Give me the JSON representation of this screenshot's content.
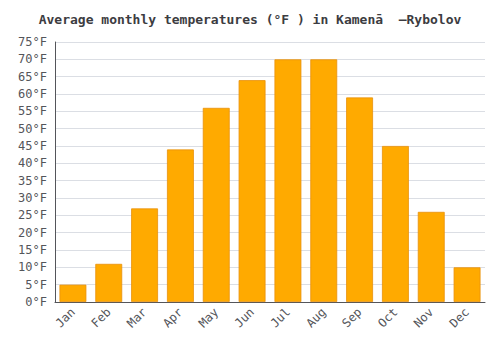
{
  "chart_data": {
    "type": "bar",
    "title": "Average monthly temperatures (°F ) in Kamenā  –Rybolov",
    "categories": [
      "Jan",
      "Feb",
      "Mar",
      "Apr",
      "May",
      "Jun",
      "Jul",
      "Aug",
      "Sep",
      "Oct",
      "Nov",
      "Dec"
    ],
    "values": [
      5,
      11,
      27,
      44,
      56,
      64,
      70,
      70,
      59,
      45,
      26,
      10
    ],
    "color": "#FFAA00",
    "ylim": [
      0,
      75
    ],
    "yticks": [
      {
        "value": 0,
        "label": "0°F"
      },
      {
        "value": 5,
        "label": "5°F"
      },
      {
        "value": 10,
        "label": "10°F"
      },
      {
        "value": 15,
        "label": "15°F"
      },
      {
        "value": 20,
        "label": "20°F"
      },
      {
        "value": 25,
        "label": "25°F"
      },
      {
        "value": 30,
        "label": "30°F"
      },
      {
        "value": 35,
        "label": "35°F"
      },
      {
        "value": 40,
        "label": "40°F"
      },
      {
        "value": 45,
        "label": "45°F"
      },
      {
        "value": 50,
        "label": "50°F"
      },
      {
        "value": 55,
        "label": "55°F"
      },
      {
        "value": 60,
        "label": "60°F"
      },
      {
        "value": 65,
        "label": "65°F"
      },
      {
        "value": 70,
        "label": "70°F"
      },
      {
        "value": 75,
        "label": "75°F"
      }
    ],
    "grid": true
  }
}
